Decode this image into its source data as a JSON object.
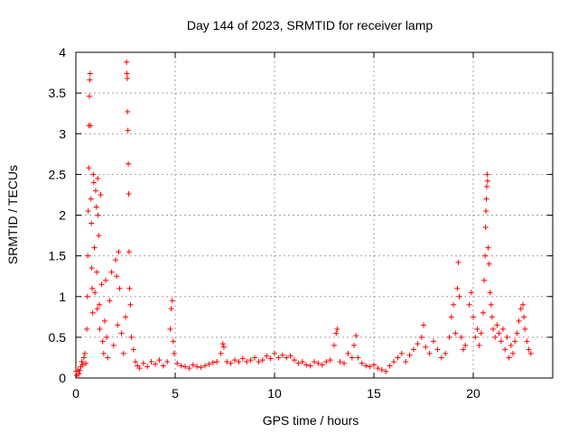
{
  "chart_data": {
    "type": "scatter",
    "title": "Day 144 of 2023, SRMTID for receiver lamp",
    "xlabel": "GPS time / hours",
    "ylabel": "SRMTID / TECUs",
    "xlim": [
      0,
      24
    ],
    "ylim": [
      0,
      4
    ],
    "xticks": [
      0,
      5,
      10,
      15,
      20
    ],
    "yticks": [
      0,
      0.5,
      1,
      1.5,
      2,
      2.5,
      3,
      3.5,
      4
    ],
    "grid": true,
    "marker": "plus",
    "color": "#ff0000",
    "series": [
      {
        "name": "SRMTID",
        "points": [
          [
            0.0,
            0.08
          ],
          [
            0.05,
            0.03
          ],
          [
            0.1,
            0.1
          ],
          [
            0.15,
            0.05
          ],
          [
            0.2,
            0.09
          ],
          [
            0.25,
            0.14
          ],
          [
            0.3,
            0.2
          ],
          [
            0.35,
            0.16
          ],
          [
            0.4,
            0.25
          ],
          [
            0.45,
            0.3
          ],
          [
            0.5,
            0.18
          ],
          [
            0.55,
            0.6
          ],
          [
            0.58,
            1.0
          ],
          [
            0.6,
            1.5
          ],
          [
            0.62,
            2.05
          ],
          [
            0.65,
            2.58
          ],
          [
            0.66,
            3.1
          ],
          [
            0.68,
            3.46
          ],
          [
            0.7,
            3.66
          ],
          [
            0.72,
            3.74
          ],
          [
            0.74,
            3.1
          ],
          [
            0.76,
            2.2
          ],
          [
            0.78,
            1.9
          ],
          [
            0.8,
            1.35
          ],
          [
            0.82,
            1.1
          ],
          [
            0.85,
            0.8
          ],
          [
            0.88,
            2.5
          ],
          [
            0.9,
            2.4
          ],
          [
            0.93,
            1.6
          ],
          [
            0.96,
            1.05
          ],
          [
            1.0,
            2.3
          ],
          [
            1.03,
            2.1
          ],
          [
            1.05,
            1.3
          ],
          [
            1.08,
            0.85
          ],
          [
            1.1,
            2.45
          ],
          [
            1.12,
            2.0
          ],
          [
            1.15,
            1.75
          ],
          [
            1.18,
            0.9
          ],
          [
            1.2,
            0.6
          ],
          [
            1.25,
            2.25
          ],
          [
            1.3,
            1.15
          ],
          [
            1.35,
            0.45
          ],
          [
            1.4,
            0.3
          ],
          [
            1.45,
            0.7
          ],
          [
            1.5,
            1.2
          ],
          [
            1.55,
            0.5
          ],
          [
            1.6,
            0.25
          ],
          [
            1.7,
            0.95
          ],
          [
            1.8,
            1.3
          ],
          [
            1.9,
            0.4
          ],
          [
            2.0,
            1.45
          ],
          [
            2.05,
            1.25
          ],
          [
            2.1,
            0.65
          ],
          [
            2.15,
            1.55
          ],
          [
            2.2,
            1.1
          ],
          [
            2.3,
            0.55
          ],
          [
            2.4,
            0.3
          ],
          [
            2.5,
            0.75
          ],
          [
            2.55,
            3.88
          ],
          [
            2.57,
            3.74
          ],
          [
            2.59,
            3.68
          ],
          [
            2.6,
            3.27
          ],
          [
            2.62,
            3.04
          ],
          [
            2.64,
            2.63
          ],
          [
            2.66,
            2.26
          ],
          [
            2.68,
            1.55
          ],
          [
            2.7,
            1.1
          ],
          [
            2.75,
            0.9
          ],
          [
            2.8,
            0.5
          ],
          [
            2.9,
            0.35
          ],
          [
            3.0,
            0.2
          ],
          [
            3.1,
            0.15
          ],
          [
            3.2,
            0.12
          ],
          [
            3.4,
            0.18
          ],
          [
            3.6,
            0.14
          ],
          [
            3.8,
            0.2
          ],
          [
            4.0,
            0.17
          ],
          [
            4.2,
            0.22
          ],
          [
            4.4,
            0.15
          ],
          [
            4.6,
            0.2
          ],
          [
            4.75,
            0.6
          ],
          [
            4.8,
            0.85
          ],
          [
            4.85,
            0.95
          ],
          [
            4.9,
            0.45
          ],
          [
            4.95,
            0.3
          ],
          [
            5.1,
            0.18
          ],
          [
            5.3,
            0.15
          ],
          [
            5.5,
            0.14
          ],
          [
            5.7,
            0.12
          ],
          [
            5.9,
            0.16
          ],
          [
            6.1,
            0.14
          ],
          [
            6.3,
            0.13
          ],
          [
            6.5,
            0.15
          ],
          [
            6.7,
            0.17
          ],
          [
            6.9,
            0.19
          ],
          [
            7.1,
            0.2
          ],
          [
            7.3,
            0.3
          ],
          [
            7.4,
            0.42
          ],
          [
            7.45,
            0.38
          ],
          [
            7.6,
            0.2
          ],
          [
            7.8,
            0.18
          ],
          [
            8.0,
            0.22
          ],
          [
            8.2,
            0.2
          ],
          [
            8.4,
            0.24
          ],
          [
            8.6,
            0.2
          ],
          [
            8.8,
            0.22
          ],
          [
            9.0,
            0.25
          ],
          [
            9.2,
            0.2
          ],
          [
            9.4,
            0.22
          ],
          [
            9.6,
            0.27
          ],
          [
            9.8,
            0.24
          ],
          [
            10.0,
            0.3
          ],
          [
            10.2,
            0.25
          ],
          [
            10.4,
            0.28
          ],
          [
            10.6,
            0.25
          ],
          [
            10.8,
            0.27
          ],
          [
            11.0,
            0.22
          ],
          [
            11.2,
            0.18
          ],
          [
            11.4,
            0.2
          ],
          [
            11.6,
            0.16
          ],
          [
            11.8,
            0.15
          ],
          [
            12.0,
            0.2
          ],
          [
            12.2,
            0.18
          ],
          [
            12.4,
            0.16
          ],
          [
            12.6,
            0.2
          ],
          [
            12.8,
            0.22
          ],
          [
            13.0,
            0.4
          ],
          [
            13.1,
            0.55
          ],
          [
            13.15,
            0.6
          ],
          [
            13.3,
            0.2
          ],
          [
            13.5,
            0.18
          ],
          [
            13.7,
            0.3
          ],
          [
            13.9,
            0.25
          ],
          [
            14.0,
            0.4
          ],
          [
            14.1,
            0.52
          ],
          [
            14.2,
            0.25
          ],
          [
            14.4,
            0.18
          ],
          [
            14.6,
            0.15
          ],
          [
            14.8,
            0.14
          ],
          [
            15.0,
            0.16
          ],
          [
            15.2,
            0.12
          ],
          [
            15.4,
            0.1
          ],
          [
            15.6,
            0.08
          ],
          [
            15.8,
            0.15
          ],
          [
            16.0,
            0.2
          ],
          [
            16.2,
            0.25
          ],
          [
            16.4,
            0.3
          ],
          [
            16.6,
            0.2
          ],
          [
            16.8,
            0.28
          ],
          [
            17.0,
            0.35
          ],
          [
            17.2,
            0.42
          ],
          [
            17.4,
            0.5
          ],
          [
            17.5,
            0.65
          ],
          [
            17.6,
            0.38
          ],
          [
            17.8,
            0.3
          ],
          [
            18.0,
            0.45
          ],
          [
            18.2,
            0.35
          ],
          [
            18.4,
            0.25
          ],
          [
            18.6,
            0.3
          ],
          [
            18.8,
            0.5
          ],
          [
            18.9,
            0.75
          ],
          [
            19.0,
            0.9
          ],
          [
            19.1,
            0.55
          ],
          [
            19.2,
            1.1
          ],
          [
            19.25,
            1.42
          ],
          [
            19.3,
            1.0
          ],
          [
            19.4,
            0.5
          ],
          [
            19.5,
            0.35
          ],
          [
            19.6,
            0.4
          ],
          [
            19.8,
            0.9
          ],
          [
            19.9,
            1.05
          ],
          [
            20.0,
            0.75
          ],
          [
            20.1,
            0.5
          ],
          [
            20.2,
            0.6
          ],
          [
            20.3,
            0.4
          ],
          [
            20.4,
            0.55
          ],
          [
            20.5,
            0.8
          ],
          [
            20.55,
            1.2
          ],
          [
            20.6,
            1.5
          ],
          [
            20.62,
            1.85
          ],
          [
            20.64,
            2.05
          ],
          [
            20.66,
            2.2
          ],
          [
            20.68,
            2.35
          ],
          [
            20.7,
            2.5
          ],
          [
            20.72,
            2.42
          ],
          [
            20.75,
            1.6
          ],
          [
            20.8,
            1.4
          ],
          [
            20.85,
            1.05
          ],
          [
            20.9,
            0.9
          ],
          [
            20.95,
            0.75
          ],
          [
            21.0,
            0.6
          ],
          [
            21.1,
            0.5
          ],
          [
            21.2,
            0.65
          ],
          [
            21.3,
            0.55
          ],
          [
            21.4,
            0.45
          ],
          [
            21.5,
            0.6
          ],
          [
            21.6,
            0.35
          ],
          [
            21.7,
            0.5
          ],
          [
            21.8,
            0.25
          ],
          [
            21.9,
            0.4
          ],
          [
            22.0,
            0.3
          ],
          [
            22.1,
            0.45
          ],
          [
            22.2,
            0.55
          ],
          [
            22.3,
            0.7
          ],
          [
            22.4,
            0.85
          ],
          [
            22.5,
            0.9
          ],
          [
            22.55,
            0.75
          ],
          [
            22.6,
            0.6
          ],
          [
            22.7,
            0.45
          ],
          [
            22.8,
            0.35
          ],
          [
            22.9,
            0.3
          ]
        ]
      }
    ]
  }
}
